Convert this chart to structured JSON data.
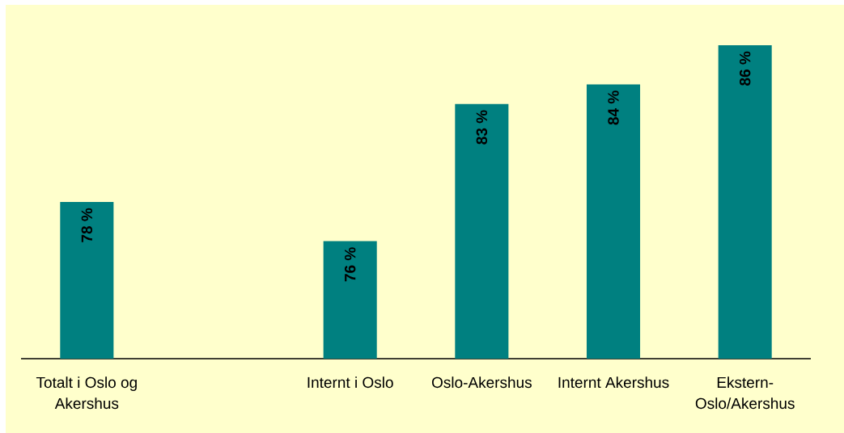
{
  "chart_data": {
    "type": "bar",
    "categories": [
      "Totalt i Oslo og Akershus",
      null,
      "Internt i Oslo",
      "Oslo-Akershus",
      "Internt Akershus",
      "Ekstern-Oslo/Akershus"
    ],
    "values": [
      78,
      null,
      76,
      83,
      84,
      86
    ],
    "value_labels": [
      "78 %",
      null,
      "76 %",
      "83 %",
      "84 %",
      "86 %"
    ],
    "color": "#008080",
    "ylim": [
      70,
      86
    ],
    "tick_labels": "x"
  }
}
